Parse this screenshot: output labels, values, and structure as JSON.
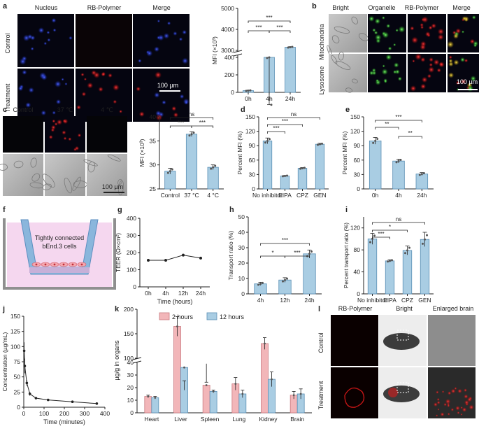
{
  "figure": {
    "scale_bar": "100 µm",
    "a": {
      "label": "a",
      "columns": [
        "Nucleus",
        "RB-Polymer",
        "Merge"
      ],
      "rows": [
        "Control",
        "Treatment"
      ]
    },
    "b": {
      "label": "b",
      "columns": [
        "Bright",
        "Organelle",
        "RB-Polymer",
        "Merge"
      ],
      "rows": [
        "Mitochondria",
        "Lysosome"
      ]
    },
    "c": {
      "label": "c",
      "columns": [
        "Control",
        "37 ℃",
        "4 ℃"
      ]
    },
    "f": {
      "label": "f",
      "text_line1": "Tightly connected",
      "text_line2": "bEnd.3 cells"
    },
    "l": {
      "label": "l",
      "columns": [
        "RB-Polymer",
        "Bright",
        "Enlarged brain"
      ],
      "rows": [
        "Control",
        "Treatment"
      ]
    }
  },
  "colors": {
    "bar_fill": "#a9cde3",
    "bar_stroke": "#5a8fb5",
    "pink": "#f2b6b9",
    "nucleus_blue": "#2a3bd6",
    "fluor_red": "#e8202a",
    "fluor_green": "#3fbf3f"
  },
  "chart_data": [
    {
      "id": "a-chart",
      "type": "bar",
      "categories": [
        "0h",
        "4h",
        "24h"
      ],
      "values": [
        20,
        400,
        3150
      ],
      "errors": [
        5,
        12,
        25
      ],
      "ylabel": "MFI (×10³)",
      "yticks": [
        "0",
        "200",
        "400",
        "3000",
        "4000",
        "5000"
      ],
      "sig": [
        {
          "a": 0,
          "b": 2,
          "text": "***"
        },
        {
          "a": 0,
          "b": 1,
          "text": "***"
        },
        {
          "a": 1,
          "b": 2,
          "text": "***"
        }
      ]
    },
    {
      "id": "c-chart",
      "type": "bar",
      "categories": [
        "Control",
        "37 °C",
        "4 °C"
      ],
      "values": [
        28.7,
        36.4,
        29.5
      ],
      "errors": [
        0.6,
        0.5,
        0.5
      ],
      "ylabel": "MFI (×10³)",
      "ylim": [
        25,
        40
      ],
      "yticks": [
        "25",
        "30",
        "35",
        "40"
      ],
      "sig": [
        {
          "a": 0,
          "b": 2,
          "text": "ns"
        },
        {
          "a": 0,
          "b": 1,
          "text": "***"
        },
        {
          "a": 1,
          "b": 2,
          "text": "***"
        }
      ]
    },
    {
      "id": "d-chart",
      "type": "bar",
      "categories": [
        "No inhibitor",
        "EIPA",
        "CPZ",
        "GEN"
      ],
      "values": [
        100,
        27,
        43,
        93
      ],
      "errors": [
        6,
        1,
        1.5,
        2
      ],
      "ylabel": "Percent MFI (%)",
      "ylim": [
        0,
        150
      ],
      "yticks": [
        "0",
        "30",
        "60",
        "90",
        "120",
        "150"
      ],
      "sig": [
        {
          "a": 0,
          "b": 3,
          "text": "ns"
        },
        {
          "a": 0,
          "b": 2,
          "text": "***"
        },
        {
          "a": 0,
          "b": 1,
          "text": "***"
        }
      ]
    },
    {
      "id": "e-chart",
      "type": "bar",
      "categories": [
        "0h",
        "4h",
        "24h"
      ],
      "values": [
        100,
        58,
        31
      ],
      "errors": [
        7,
        4,
        3
      ],
      "ylabel": "Percent MFI (%)",
      "ylim": [
        0,
        150
      ],
      "yticks": [
        "0",
        "30",
        "60",
        "90",
        "120",
        "150"
      ],
      "sig": [
        {
          "a": 0,
          "b": 2,
          "text": "***"
        },
        {
          "a": 0,
          "b": 1,
          "text": "**"
        },
        {
          "a": 1,
          "b": 2,
          "text": "**"
        }
      ]
    },
    {
      "id": "g-chart",
      "type": "line",
      "x": [
        "0h",
        "4h",
        "12h",
        "24h"
      ],
      "values": [
        155,
        155,
        185,
        168
      ],
      "errors": [
        5,
        4,
        8,
        7
      ],
      "xlabel": "Time (hours)",
      "ylabel": "TEER (Ω×cm²)",
      "ylim": [
        0,
        400
      ],
      "yticks": [
        "0",
        "100",
        "200",
        "300",
        "400"
      ]
    },
    {
      "id": "h-chart",
      "type": "bar",
      "categories": [
        "4h",
        "12h",
        "24h"
      ],
      "values": [
        6.5,
        9,
        26
      ],
      "errors": [
        1,
        1.5,
        2.5
      ],
      "ylabel": "Transport ratio (%)",
      "ylim": [
        0,
        50
      ],
      "yticks": [
        "0",
        "10",
        "20",
        "30",
        "40",
        "50"
      ],
      "sig": [
        {
          "a": 0,
          "b": 2,
          "text": "***"
        },
        {
          "a": 0,
          "b": 1,
          "text": "*"
        },
        {
          "a": 1,
          "b": 2,
          "text": "***"
        }
      ]
    },
    {
      "id": "i-chart",
      "type": "bar",
      "categories": [
        "No inhibitor",
        "EIPA",
        "CPZ",
        "GEN"
      ],
      "values": [
        100,
        60,
        79,
        99
      ],
      "errors": [
        10,
        2,
        8,
        13
      ],
      "ylabel": "Percent transport ratio (%)",
      "ylim": [
        0,
        140
      ],
      "yticks": [
        "0",
        "40",
        "80",
        "120"
      ],
      "sig": [
        {
          "a": 0,
          "b": 3,
          "text": "ns"
        },
        {
          "a": 0,
          "b": 2,
          "text": "*"
        },
        {
          "a": 0,
          "b": 1,
          "text": "***"
        }
      ]
    },
    {
      "id": "j-chart",
      "type": "line",
      "x": [
        2,
        5,
        15,
        30,
        60,
        120,
        240,
        360
      ],
      "values": [
        93,
        68,
        40,
        22,
        15,
        12,
        9,
        6
      ],
      "errors": [
        14,
        12,
        5,
        3,
        2,
        1.5,
        1,
        1
      ],
      "xlabel": "Time (minutes)",
      "ylabel": "Concentration (µg/mL)",
      "xlim": [
        0,
        400
      ],
      "ylim": [
        0,
        150
      ],
      "xticks": [
        "0",
        "100",
        "200",
        "300",
        "400"
      ],
      "yticks": [
        "0",
        "25",
        "50",
        "75",
        "100",
        "125",
        "150"
      ]
    },
    {
      "id": "k-chart",
      "type": "bar",
      "categories": [
        "Heart",
        "Liver",
        "Spleen",
        "Lung",
        "Kidney",
        "Brain"
      ],
      "series": [
        {
          "name": "2 hours",
          "values": [
            13,
            165,
            45,
            23,
            130,
            14
          ],
          "errors": [
            1,
            20,
            6,
            5,
            12,
            3
          ]
        },
        {
          "name": "12 hours",
          "values": [
            12,
            36,
            17,
            15,
            57,
            15
          ],
          "errors": [
            1,
            18,
            1,
            3,
            15,
            4
          ]
        }
      ],
      "ylabel": "µg/g in organs",
      "yticks": [
        "0",
        "10",
        "20",
        "30",
        "40",
        "100",
        "150",
        "200"
      ]
    }
  ]
}
